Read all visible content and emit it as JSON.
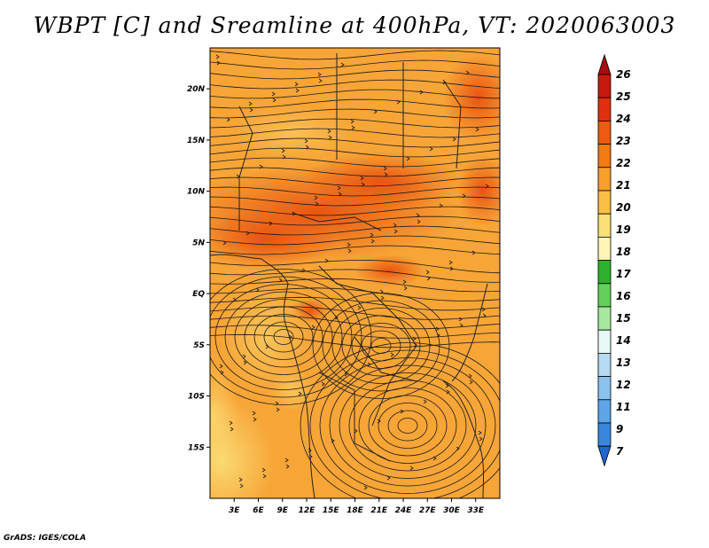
{
  "title": "WBPT [C] and Sreamline at 400hPa, VT: 2020063003",
  "credit": "GrADS: IGES/COLA",
  "map": {
    "lon_range": [
      0,
      36
    ],
    "lat_range": [
      -20,
      24
    ],
    "lon_ticks": [
      "3E",
      "6E",
      "9E",
      "12E",
      "15E",
      "18E",
      "21E",
      "24E",
      "27E",
      "30E",
      "33E"
    ],
    "lon_values": [
      3,
      6,
      9,
      12,
      15,
      18,
      21,
      24,
      27,
      30,
      33
    ],
    "lat_ticks": [
      "20N",
      "15N",
      "10N",
      "5N",
      "EQ",
      "5S",
      "10S",
      "15S"
    ],
    "lat_values": [
      20,
      15,
      10,
      5,
      0,
      -5,
      -10,
      -15
    ]
  },
  "colorbar": {
    "labels": [
      "26",
      "25",
      "24",
      "23",
      "22",
      "21",
      "20",
      "19",
      "18",
      "17",
      "16",
      "15",
      "14",
      "13",
      "12",
      "11",
      "9",
      "7"
    ],
    "colors": [
      "#a50f0f",
      "#c8190f",
      "#e03010",
      "#ee5a12",
      "#f47a12",
      "#f7a02a",
      "#fbbf45",
      "#fbe07a",
      "#fef5b6",
      "#2fb12f",
      "#64cf5a",
      "#a6e8a0",
      "#e8f8f4",
      "#b6d9f4",
      "#8cc2ee",
      "#5ea4e6",
      "#3a86dc",
      "#1f66cf"
    ]
  }
}
